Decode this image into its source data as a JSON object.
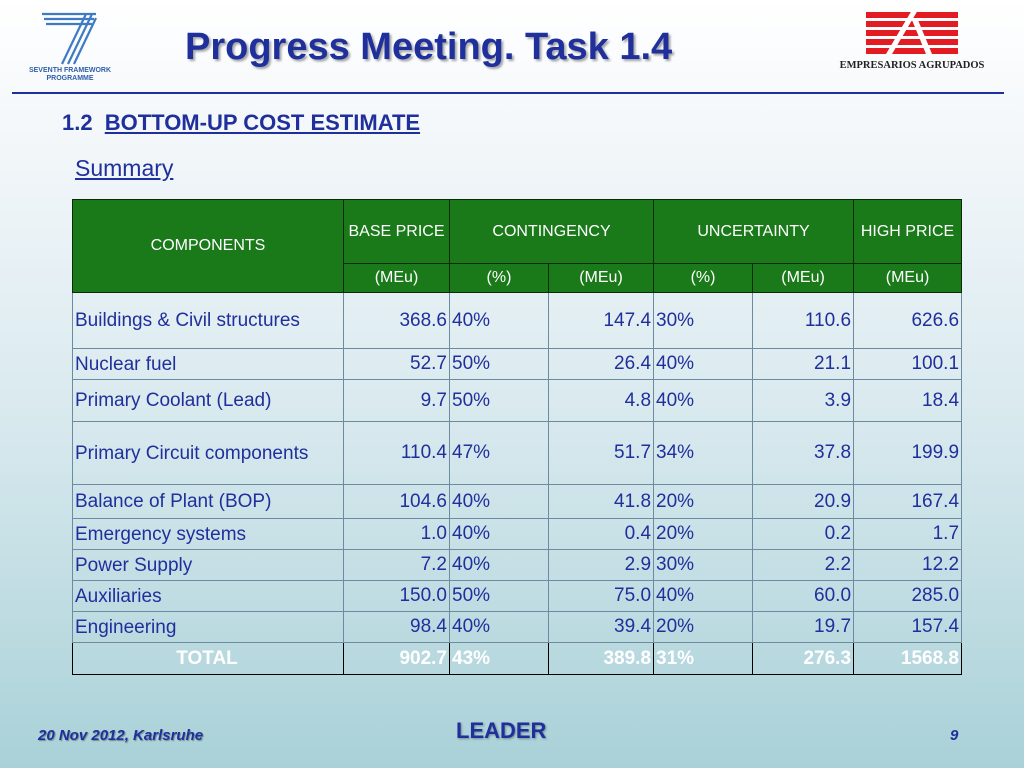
{
  "logos": {
    "left_icon": "fp7-seven-logo-icon",
    "left_text_line1": "SEVENTH FRAMEWORK",
    "left_text_line2": "PROGRAMME",
    "right_icon": "ea-logo-icon",
    "right_text": "EMPRESARIOS AGRUPADOS"
  },
  "colors": {
    "title_blue": "#1f2f9c",
    "header_green": "#1a7a1a",
    "ea_red": "#e31b23"
  },
  "header": {
    "title": "Progress Meeting. Task 1.4"
  },
  "section": {
    "number": "1.2",
    "title": "BOTTOM-UP COST ESTIMATE",
    "subtitle": "Summary"
  },
  "table": {
    "header_row1": {
      "components": "COMPONENTS",
      "base_price": "BASE PRICE",
      "contingency": "CONTINGENCY",
      "uncertainty": "UNCERTAINTY",
      "high_price": "HIGH PRICE"
    },
    "header_row2": [
      "(MEu)",
      "(%)",
      "(MEu)",
      "(%)",
      "(MEu)",
      "(MEu)"
    ],
    "rows": [
      {
        "component": "Buildings & Civil structures",
        "base": "368.6",
        "cont_pct": "40%",
        "cont_meu": "147.4",
        "unc_pct": "30%",
        "unc_meu": "110.6",
        "high": "626.6"
      },
      {
        "component": "Nuclear fuel",
        "base": "52.7",
        "cont_pct": "50%",
        "cont_meu": "26.4",
        "unc_pct": "40%",
        "unc_meu": "21.1",
        "high": "100.1"
      },
      {
        "component": "Primary Coolant (Lead)",
        "base": "9.7",
        "cont_pct": "50%",
        "cont_meu": "4.8",
        "unc_pct": "40%",
        "unc_meu": "3.9",
        "high": "18.4"
      },
      {
        "component": "Primary Circuit components",
        "base": "110.4",
        "cont_pct": "47%",
        "cont_meu": "51.7",
        "unc_pct": "34%",
        "unc_meu": "37.8",
        "high": "199.9"
      },
      {
        "component": "Balance of Plant (BOP)",
        "base": "104.6",
        "cont_pct": "40%",
        "cont_meu": "41.8",
        "unc_pct": "20%",
        "unc_meu": "20.9",
        "high": "167.4"
      },
      {
        "component": "Emergency systems",
        "base": "1.0",
        "cont_pct": "40%",
        "cont_meu": "0.4",
        "unc_pct": "20%",
        "unc_meu": "0.2",
        "high": "1.7"
      },
      {
        "component": "Power Supply",
        "base": "7.2",
        "cont_pct": "40%",
        "cont_meu": "2.9",
        "unc_pct": "30%",
        "unc_meu": "2.2",
        "high": "12.2"
      },
      {
        "component": "Auxiliaries",
        "base": "150.0",
        "cont_pct": "50%",
        "cont_meu": "75.0",
        "unc_pct": "40%",
        "unc_meu": "60.0",
        "high": "285.0"
      },
      {
        "component": "Engineering",
        "base": "98.4",
        "cont_pct": "40%",
        "cont_meu": "39.4",
        "unc_pct": "20%",
        "unc_meu": "19.7",
        "high": "157.4"
      }
    ],
    "total": {
      "component": "TOTAL",
      "base": "902.7",
      "cont_pct": "43%",
      "cont_meu": "389.8",
      "unc_pct": "31%",
      "unc_meu": "276.3",
      "high": "1568.8"
    }
  },
  "footer": {
    "date_place": "20 Nov 2012, Karlsruhe",
    "project": "LEADER",
    "page_number": "9"
  }
}
